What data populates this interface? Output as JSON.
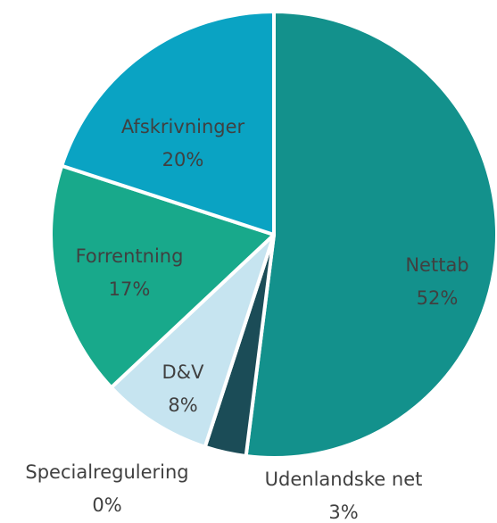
{
  "chart_data": {
    "type": "pie",
    "categories": [
      "Nettab",
      "Udenlandske net",
      "Specialregulering",
      "D&V",
      "Forrentning",
      "Afskrivninger"
    ],
    "values": [
      52,
      3,
      0,
      8,
      17,
      20
    ],
    "value_labels": [
      "52%",
      "3%",
      "0%",
      "8%",
      "17%",
      "20%"
    ],
    "colors": [
      "#13918c",
      "#1b4c57",
      "#ffffff",
      "#c6e4f0",
      "#18a98b",
      "#0aa3c3"
    ]
  }
}
